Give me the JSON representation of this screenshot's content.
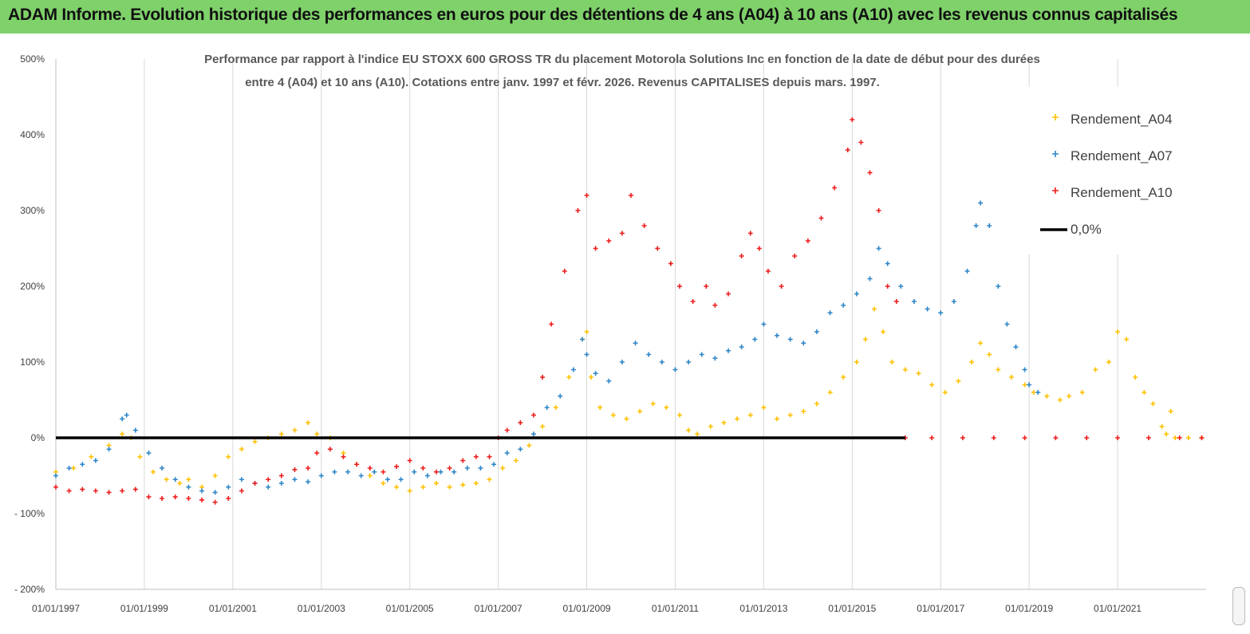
{
  "banner": {
    "title": "ADAM Informe. Evolution historique des performances en euros pour des détentions de 4 ans (A04) à 10 ans (A10) avec les revenus connus capitalisés"
  },
  "chart_data": {
    "type": "scatter",
    "title_line1": "Performance par rapport à l'indice EU STOXX 600 GROSS TR  du placement Motorola Solutions Inc en fonction de la date de début pour des durées",
    "title_line2": "entre 4 (A04) et 10 ans (A10).  Cotations entre janv. 1997 et févr. 2026. Revenus  CAPITALISES depuis mars. 1997.",
    "ylim": [
      -200,
      500
    ],
    "yticks": [
      500,
      400,
      300,
      200,
      100,
      0,
      -100,
      -200
    ],
    "ytick_labels": [
      "500%",
      "400%",
      "300%",
      "200%",
      "100%",
      "0%",
      "- 100%",
      "- 200%"
    ],
    "xlim": [
      1997.0,
      2023.0
    ],
    "xticks": [
      1997,
      1999,
      2001,
      2003,
      2005,
      2007,
      2009,
      2011,
      2013,
      2015,
      2017,
      2019,
      2021
    ],
    "xtick_labels": [
      "01/01/1997",
      "01/01/1999",
      "01/01/2001",
      "01/01/2003",
      "01/01/2005",
      "01/01/2007",
      "01/01/2009",
      "01/01/2011",
      "01/01/2013",
      "01/01/2015",
      "01/01/2017",
      "01/01/2019",
      "01/01/2021"
    ],
    "grid": "vertical",
    "legend_position": "top-right",
    "series": [
      {
        "name": "Rendement_A04",
        "color": "#ffc000",
        "marker": "plus",
        "points": [
          [
            1997.0,
            -45
          ],
          [
            1997.4,
            -40
          ],
          [
            1997.8,
            -25
          ],
          [
            1998.2,
            -10
          ],
          [
            1998.5,
            5
          ],
          [
            1998.7,
            0
          ],
          [
            1998.9,
            -25
          ],
          [
            1999.2,
            -45
          ],
          [
            1999.5,
            -55
          ],
          [
            1999.8,
            -60
          ],
          [
            2000.0,
            -55
          ],
          [
            2000.3,
            -65
          ],
          [
            2000.6,
            -50
          ],
          [
            2000.9,
            -25
          ],
          [
            2001.2,
            -15
          ],
          [
            2001.5,
            -5
          ],
          [
            2001.8,
            0
          ],
          [
            2002.1,
            5
          ],
          [
            2002.4,
            10
          ],
          [
            2002.7,
            20
          ],
          [
            2002.9,
            5
          ],
          [
            2003.2,
            0
          ],
          [
            2003.5,
            -20
          ],
          [
            2003.8,
            -35
          ],
          [
            2004.1,
            -50
          ],
          [
            2004.4,
            -60
          ],
          [
            2004.7,
            -65
          ],
          [
            2005.0,
            -70
          ],
          [
            2005.3,
            -65
          ],
          [
            2005.6,
            -60
          ],
          [
            2005.9,
            -65
          ],
          [
            2006.2,
            -62
          ],
          [
            2006.5,
            -60
          ],
          [
            2006.8,
            -55
          ],
          [
            2007.1,
            -40
          ],
          [
            2007.4,
            -30
          ],
          [
            2007.7,
            -10
          ],
          [
            2008.0,
            15
          ],
          [
            2008.3,
            40
          ],
          [
            2008.6,
            80
          ],
          [
            2008.9,
            130
          ],
          [
            2009.0,
            140
          ],
          [
            2009.1,
            80
          ],
          [
            2009.3,
            40
          ],
          [
            2009.6,
            30
          ],
          [
            2009.9,
            25
          ],
          [
            2010.2,
            35
          ],
          [
            2010.5,
            45
          ],
          [
            2010.8,
            40
          ],
          [
            2011.1,
            30
          ],
          [
            2011.3,
            10
          ],
          [
            2011.5,
            5
          ],
          [
            2011.8,
            15
          ],
          [
            2012.1,
            20
          ],
          [
            2012.4,
            25
          ],
          [
            2012.7,
            30
          ],
          [
            2013.0,
            40
          ],
          [
            2013.3,
            25
          ],
          [
            2013.6,
            30
          ],
          [
            2013.9,
            35
          ],
          [
            2014.2,
            45
          ],
          [
            2014.5,
            60
          ],
          [
            2014.8,
            80
          ],
          [
            2015.1,
            100
          ],
          [
            2015.3,
            130
          ],
          [
            2015.5,
            170
          ],
          [
            2015.7,
            140
          ],
          [
            2015.9,
            100
          ],
          [
            2016.2,
            90
          ],
          [
            2016.5,
            85
          ],
          [
            2016.8,
            70
          ],
          [
            2017.1,
            60
          ],
          [
            2017.4,
            75
          ],
          [
            2017.7,
            100
          ],
          [
            2017.9,
            125
          ],
          [
            2018.1,
            110
          ],
          [
            2018.3,
            90
          ],
          [
            2018.6,
            80
          ],
          [
            2018.9,
            70
          ],
          [
            2019.1,
            60
          ],
          [
            2019.4,
            55
          ],
          [
            2019.7,
            50
          ],
          [
            2019.9,
            55
          ],
          [
            2020.2,
            60
          ],
          [
            2020.5,
            90
          ],
          [
            2020.8,
            100
          ],
          [
            2021.0,
            140
          ],
          [
            2021.2,
            130
          ],
          [
            2021.4,
            80
          ],
          [
            2021.6,
            60
          ],
          [
            2021.8,
            45
          ],
          [
            2022.0,
            15
          ],
          [
            2022.1,
            5
          ],
          [
            2022.2,
            35
          ],
          [
            2022.3,
            0
          ],
          [
            2022.6,
            0
          ],
          [
            2022.9,
            0
          ]
        ]
      },
      {
        "name": "Rendement_A07",
        "color": "#2e86c8",
        "marker": "plus",
        "points": [
          [
            1997.0,
            -50
          ],
          [
            1997.3,
            -40
          ],
          [
            1997.6,
            -35
          ],
          [
            1997.9,
            -30
          ],
          [
            1998.2,
            -15
          ],
          [
            1998.5,
            25
          ],
          [
            1998.6,
            30
          ],
          [
            1998.8,
            10
          ],
          [
            1999.1,
            -20
          ],
          [
            1999.4,
            -40
          ],
          [
            1999.7,
            -55
          ],
          [
            2000.0,
            -65
          ],
          [
            2000.3,
            -70
          ],
          [
            2000.6,
            -72
          ],
          [
            2000.9,
            -65
          ],
          [
            2001.2,
            -55
          ],
          [
            2001.5,
            -60
          ],
          [
            2001.8,
            -65
          ],
          [
            2002.1,
            -60
          ],
          [
            2002.4,
            -55
          ],
          [
            2002.7,
            -58
          ],
          [
            2003.0,
            -50
          ],
          [
            2003.3,
            -45
          ],
          [
            2003.6,
            -45
          ],
          [
            2003.9,
            -50
          ],
          [
            2004.2,
            -45
          ],
          [
            2004.5,
            -55
          ],
          [
            2004.8,
            -55
          ],
          [
            2005.1,
            -45
          ],
          [
            2005.4,
            -50
          ],
          [
            2005.7,
            -45
          ],
          [
            2006.0,
            -45
          ],
          [
            2006.3,
            -40
          ],
          [
            2006.6,
            -40
          ],
          [
            2006.9,
            -35
          ],
          [
            2007.2,
            -20
          ],
          [
            2007.5,
            -15
          ],
          [
            2007.8,
            5
          ],
          [
            2008.1,
            40
          ],
          [
            2008.4,
            55
          ],
          [
            2008.7,
            90
          ],
          [
            2008.9,
            130
          ],
          [
            2009.0,
            110
          ],
          [
            2009.2,
            85
          ],
          [
            2009.5,
            75
          ],
          [
            2009.8,
            100
          ],
          [
            2010.1,
            125
          ],
          [
            2010.4,
            110
          ],
          [
            2010.7,
            100
          ],
          [
            2011.0,
            90
          ],
          [
            2011.3,
            100
          ],
          [
            2011.6,
            110
          ],
          [
            2011.9,
            105
          ],
          [
            2012.2,
            115
          ],
          [
            2012.5,
            120
          ],
          [
            2012.8,
            130
          ],
          [
            2013.0,
            150
          ],
          [
            2013.3,
            135
          ],
          [
            2013.6,
            130
          ],
          [
            2013.9,
            125
          ],
          [
            2014.2,
            140
          ],
          [
            2014.5,
            165
          ],
          [
            2014.8,
            175
          ],
          [
            2015.1,
            190
          ],
          [
            2015.4,
            210
          ],
          [
            2015.6,
            250
          ],
          [
            2015.8,
            230
          ],
          [
            2016.1,
            200
          ],
          [
            2016.4,
            180
          ],
          [
            2016.7,
            170
          ],
          [
            2017.0,
            165
          ],
          [
            2017.3,
            180
          ],
          [
            2017.6,
            220
          ],
          [
            2017.8,
            280
          ],
          [
            2017.9,
            310
          ],
          [
            2018.1,
            280
          ],
          [
            2018.3,
            200
          ],
          [
            2018.5,
            150
          ],
          [
            2018.7,
            120
          ],
          [
            2018.9,
            90
          ],
          [
            2019.0,
            70
          ],
          [
            2019.2,
            60
          ]
        ]
      },
      {
        "name": "Rendement_A10",
        "color": "#ee1c1c",
        "marker": "plus",
        "points": [
          [
            1997.0,
            -65
          ],
          [
            1997.3,
            -70
          ],
          [
            1997.6,
            -68
          ],
          [
            1997.9,
            -70
          ],
          [
            1998.2,
            -72
          ],
          [
            1998.5,
            -70
          ],
          [
            1998.8,
            -68
          ],
          [
            1999.1,
            -78
          ],
          [
            1999.4,
            -80
          ],
          [
            1999.7,
            -78
          ],
          [
            2000.0,
            -80
          ],
          [
            2000.3,
            -82
          ],
          [
            2000.6,
            -85
          ],
          [
            2000.9,
            -80
          ],
          [
            2001.2,
            -70
          ],
          [
            2001.5,
            -60
          ],
          [
            2001.8,
            -55
          ],
          [
            2002.1,
            -50
          ],
          [
            2002.4,
            -42
          ],
          [
            2002.7,
            -40
          ],
          [
            2002.9,
            -20
          ],
          [
            2003.2,
            -15
          ],
          [
            2003.5,
            -25
          ],
          [
            2003.8,
            -35
          ],
          [
            2004.1,
            -40
          ],
          [
            2004.4,
            -45
          ],
          [
            2004.7,
            -38
          ],
          [
            2005.0,
            -30
          ],
          [
            2005.3,
            -40
          ],
          [
            2005.6,
            -45
          ],
          [
            2005.9,
            -40
          ],
          [
            2006.2,
            -30
          ],
          [
            2006.5,
            -25
          ],
          [
            2006.8,
            -25
          ],
          [
            2007.0,
            0
          ],
          [
            2007.2,
            10
          ],
          [
            2007.5,
            20
          ],
          [
            2007.8,
            30
          ],
          [
            2008.0,
            80
          ],
          [
            2008.2,
            150
          ],
          [
            2008.5,
            220
          ],
          [
            2008.8,
            300
          ],
          [
            2009.0,
            320
          ],
          [
            2009.2,
            250
          ],
          [
            2009.5,
            260
          ],
          [
            2009.8,
            270
          ],
          [
            2010.0,
            320
          ],
          [
            2010.3,
            280
          ],
          [
            2010.6,
            250
          ],
          [
            2010.9,
            230
          ],
          [
            2011.1,
            200
          ],
          [
            2011.4,
            180
          ],
          [
            2011.7,
            200
          ],
          [
            2011.9,
            175
          ],
          [
            2012.2,
            190
          ],
          [
            2012.5,
            240
          ],
          [
            2012.7,
            270
          ],
          [
            2012.9,
            250
          ],
          [
            2013.1,
            220
          ],
          [
            2013.4,
            200
          ],
          [
            2013.7,
            240
          ],
          [
            2014.0,
            260
          ],
          [
            2014.3,
            290
          ],
          [
            2014.6,
            330
          ],
          [
            2014.9,
            380
          ],
          [
            2015.0,
            420
          ],
          [
            2015.2,
            390
          ],
          [
            2015.4,
            350
          ],
          [
            2015.6,
            300
          ],
          [
            2015.8,
            200
          ],
          [
            2016.0,
            180
          ],
          [
            2016.2,
            0
          ],
          [
            2016.8,
            0
          ],
          [
            2017.5,
            0
          ],
          [
            2018.2,
            0
          ],
          [
            2018.9,
            0
          ],
          [
            2019.6,
            0
          ],
          [
            2020.3,
            0
          ],
          [
            2021.0,
            0
          ],
          [
            2021.7,
            0
          ],
          [
            2022.4,
            0
          ],
          [
            2022.9,
            0
          ]
        ]
      },
      {
        "name": "0,0%",
        "color": "#000000",
        "marker": "line",
        "points": [
          [
            1997.0,
            0
          ],
          [
            2016.2,
            0
          ]
        ]
      }
    ]
  }
}
